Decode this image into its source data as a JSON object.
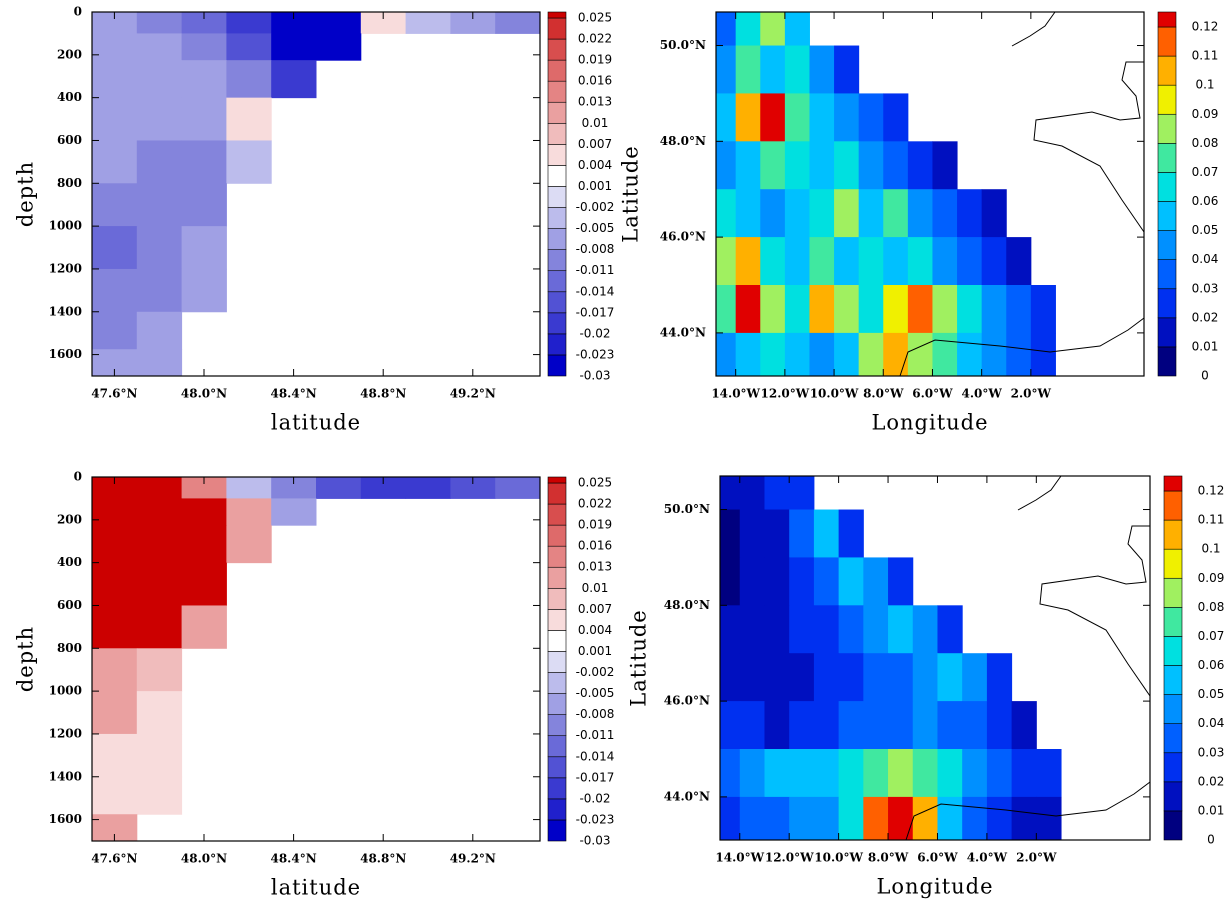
{
  "chart_data": [
    {
      "type": "heatmap",
      "xlabel": "latitude",
      "ylabel": "depth",
      "y_reversed": true,
      "xlim": [
        47.5,
        49.5
      ],
      "ylim": [
        0,
        1700
      ],
      "xticks": [
        {
          "value": 47.6,
          "label": "47.6°N"
        },
        {
          "value": 48.0,
          "label": "48.0°N"
        },
        {
          "value": 48.4,
          "label": "48.4°N"
        },
        {
          "value": 48.8,
          "label": "48.8°N"
        },
        {
          "value": 49.2,
          "label": "49.2°N"
        }
      ],
      "yticks": [
        0,
        200,
        400,
        600,
        800,
        1000,
        1200,
        1400,
        1600
      ],
      "x": [
        47.6,
        47.8,
        48.0,
        48.2,
        48.4,
        48.6,
        48.8,
        49.0,
        49.2,
        49.4
      ],
      "y": [
        50,
        150,
        300,
        500,
        700,
        900,
        1100,
        1300,
        1500,
        1650
      ],
      "z": [
        [
          -0.008,
          -0.01,
          -0.012,
          -0.018,
          -0.025,
          -0.028,
          0.005,
          -0.004,
          -0.008,
          -0.01
        ],
        [
          -0.006,
          -0.007,
          -0.01,
          -0.015,
          -0.025,
          -0.03,
          null,
          null,
          null,
          null
        ],
        [
          -0.006,
          -0.007,
          -0.008,
          -0.01,
          -0.02,
          null,
          null,
          null,
          null,
          null
        ],
        [
          -0.006,
          -0.008,
          -0.008,
          0.005,
          null,
          null,
          null,
          null,
          null,
          null
        ],
        [
          -0.008,
          -0.01,
          -0.011,
          -0.003,
          null,
          null,
          null,
          null,
          null,
          null
        ],
        [
          -0.009,
          -0.011,
          -0.01,
          null,
          null,
          null,
          null,
          null,
          null,
          null
        ],
        [
          -0.012,
          -0.01,
          -0.008,
          null,
          null,
          null,
          null,
          null,
          null,
          null
        ],
        [
          -0.011,
          -0.009,
          -0.006,
          null,
          null,
          null,
          null,
          null,
          null,
          null
        ],
        [
          -0.009,
          -0.008,
          null,
          null,
          null,
          null,
          null,
          null,
          null,
          null
        ],
        [
          -0.008,
          -0.006,
          null,
          null,
          null,
          null,
          null,
          null,
          null,
          null
        ]
      ],
      "colorbar": {
        "levels": [
          -0.03,
          -0.023,
          -0.02,
          -0.017,
          -0.014,
          -0.011,
          -0.008,
          -0.005,
          -0.002,
          0.001,
          0.004,
          0.007,
          0.01,
          0.013,
          0.016,
          0.019,
          0.022,
          0.025
        ],
        "colors": [
          "#0000c8",
          "#2020cc",
          "#3a3ad0",
          "#5252d4",
          "#6a6ad8",
          "#8484dc",
          "#a0a0e4",
          "#bcbcec",
          "#dcdcf4",
          "#ffffff",
          "#f8dcdc",
          "#f0bcbc",
          "#eaa0a0",
          "#e48484",
          "#de6a6a",
          "#d84e4e",
          "#d23030",
          "#cc0000"
        ]
      }
    },
    {
      "type": "heatmap",
      "xlabel": "Longitude",
      "ylabel": "Latitude",
      "xlim": [
        -14.8,
        2.6
      ],
      "ylim": [
        43.1,
        50.7
      ],
      "xticks": [
        {
          "value": -14,
          "label": "14.0°W"
        },
        {
          "value": -12,
          "label": "12.0°W"
        },
        {
          "value": -10,
          "label": "10.0°W"
        },
        {
          "value": -8,
          "label": "8.0°W"
        },
        {
          "value": -6,
          "label": "6.0°W"
        },
        {
          "value": -4,
          "label": "4.0°W"
        },
        {
          "value": -2,
          "label": "2.0°W"
        }
      ],
      "yticks": [
        {
          "value": 44,
          "label": "44.0°N"
        },
        {
          "value": 46,
          "label": "46.0°N"
        },
        {
          "value": 48,
          "label": "48.0°N"
        },
        {
          "value": 50,
          "label": "50.0°N"
        }
      ],
      "x": [
        -14.5,
        -13.5,
        -12.5,
        -11.5,
        -10.5,
        -9.5,
        -8.5,
        -7.5,
        -6.5,
        -5.5,
        -4.5,
        -3.5,
        -2.5,
        -1.5,
        -0.5,
        0.5,
        1.5,
        2.5
      ],
      "y": [
        50.5,
        49.5,
        48.5,
        47.5,
        46.5,
        45.5,
        44.5,
        43.5
      ],
      "z": [
        [
          0.03,
          0.06,
          0.08,
          0.05,
          null,
          null,
          null,
          null,
          null,
          null,
          null,
          null,
          null,
          null,
          null,
          null,
          null,
          null
        ],
        [
          0.04,
          0.07,
          0.05,
          0.06,
          0.04,
          0.02,
          null,
          null,
          null,
          null,
          null,
          null,
          null,
          null,
          null,
          null,
          null,
          null
        ],
        [
          0.05,
          0.1,
          0.12,
          0.07,
          0.05,
          0.04,
          0.03,
          0.02,
          null,
          null,
          null,
          null,
          null,
          null,
          null,
          null,
          null,
          null
        ],
        [
          0.04,
          0.05,
          0.07,
          0.06,
          0.05,
          0.06,
          0.04,
          0.03,
          0.02,
          0.01,
          null,
          null,
          null,
          null,
          null,
          null,
          null,
          null
        ],
        [
          0.06,
          0.05,
          0.04,
          0.05,
          0.06,
          0.08,
          0.05,
          0.07,
          0.04,
          0.03,
          0.02,
          0.01,
          null,
          null,
          null,
          null,
          null,
          null
        ],
        [
          0.08,
          0.1,
          0.06,
          0.05,
          0.07,
          0.05,
          0.06,
          0.05,
          0.06,
          0.04,
          0.03,
          0.02,
          0.01,
          null,
          null,
          null,
          null,
          null
        ],
        [
          0.07,
          0.12,
          0.08,
          0.06,
          0.1,
          0.08,
          0.06,
          0.09,
          0.11,
          0.08,
          0.06,
          0.04,
          0.03,
          0.02,
          null,
          null,
          null,
          null
        ],
        [
          0.04,
          0.05,
          0.06,
          0.05,
          0.04,
          0.05,
          0.08,
          0.1,
          0.08,
          0.07,
          0.05,
          0.04,
          0.03,
          0.02,
          null,
          null,
          null,
          null
        ]
      ],
      "colorbar": {
        "levels": [
          0,
          0.01,
          0.02,
          0.03,
          0.04,
          0.05,
          0.06,
          0.07,
          0.08,
          0.09,
          0.1,
          0.11,
          0.12
        ],
        "colors": [
          "#000080",
          "#0010c0",
          "#0030f0",
          "#0060ff",
          "#0090ff",
          "#00c0ff",
          "#00e0e0",
          "#40e8a0",
          "#a0f060",
          "#f0f000",
          "#ffb000",
          "#ff6000",
          "#e00000",
          "#b00000"
        ]
      }
    },
    {
      "type": "heatmap",
      "xlabel": "latitude",
      "ylabel": "depth",
      "y_reversed": true,
      "xlim": [
        47.5,
        49.5
      ],
      "ylim": [
        0,
        1700
      ],
      "xticks": [
        {
          "value": 47.6,
          "label": "47.6°N"
        },
        {
          "value": 48.0,
          "label": "48.0°N"
        },
        {
          "value": 48.4,
          "label": "48.4°N"
        },
        {
          "value": 48.8,
          "label": "48.8°N"
        },
        {
          "value": 49.2,
          "label": "49.2°N"
        }
      ],
      "yticks": [
        0,
        200,
        400,
        600,
        800,
        1000,
        1200,
        1400,
        1600
      ],
      "x": [
        47.6,
        47.8,
        48.0,
        48.2,
        48.4,
        48.6,
        48.8,
        49.0,
        49.2,
        49.4
      ],
      "y": [
        50,
        150,
        300,
        500,
        700,
        900,
        1100,
        1300,
        1500,
        1650
      ],
      "z": [
        [
          0.028,
          0.028,
          0.015,
          -0.005,
          -0.01,
          -0.015,
          -0.02,
          -0.018,
          -0.015,
          -0.012
        ],
        [
          0.028,
          0.028,
          0.028,
          0.01,
          -0.008,
          null,
          null,
          null,
          null,
          null
        ],
        [
          0.028,
          0.028,
          0.028,
          0.01,
          null,
          null,
          null,
          null,
          null,
          null
        ],
        [
          0.028,
          0.028,
          0.028,
          null,
          null,
          null,
          null,
          null,
          null,
          null
        ],
        [
          0.028,
          0.028,
          0.012,
          null,
          null,
          null,
          null,
          null,
          null,
          null
        ],
        [
          0.012,
          0.008,
          null,
          null,
          null,
          null,
          null,
          null,
          null,
          null
        ],
        [
          0.01,
          0.006,
          null,
          null,
          null,
          null,
          null,
          null,
          null,
          null
        ],
        [
          0.005,
          0.004,
          null,
          null,
          null,
          null,
          null,
          null,
          null,
          null
        ],
        [
          0.006,
          0.004,
          null,
          null,
          null,
          null,
          null,
          null,
          null,
          null
        ],
        [
          0.01,
          null,
          null,
          null,
          null,
          null,
          null,
          null,
          null,
          null
        ]
      ],
      "colorbar": {
        "levels": [
          -0.03,
          -0.023,
          -0.02,
          -0.017,
          -0.014,
          -0.011,
          -0.008,
          -0.005,
          -0.002,
          0.001,
          0.004,
          0.007,
          0.01,
          0.013,
          0.016,
          0.019,
          0.022,
          0.025
        ],
        "colors": [
          "#0000c8",
          "#2020cc",
          "#3a3ad0",
          "#5252d4",
          "#6a6ad8",
          "#8484dc",
          "#a0a0e4",
          "#bcbcec",
          "#dcdcf4",
          "#ffffff",
          "#f8dcdc",
          "#f0bcbc",
          "#eaa0a0",
          "#e48484",
          "#de6a6a",
          "#d84e4e",
          "#d23030",
          "#cc0000"
        ]
      }
    },
    {
      "type": "heatmap",
      "xlabel": "Longitude",
      "ylabel": "Latitude",
      "xlim": [
        -14.8,
        2.6
      ],
      "ylim": [
        43.1,
        50.7
      ],
      "xticks": [
        {
          "value": -14,
          "label": "14.0°W"
        },
        {
          "value": -12,
          "label": "12.0°W"
        },
        {
          "value": -10,
          "label": "10.0°W"
        },
        {
          "value": -8,
          "label": "8.0°W"
        },
        {
          "value": -6,
          "label": "6.0°W"
        },
        {
          "value": -4,
          "label": "4.0°W"
        },
        {
          "value": -2,
          "label": "2.0°W"
        }
      ],
      "yticks": [
        {
          "value": 44,
          "label": "44.0°N"
        },
        {
          "value": 46,
          "label": "46.0°N"
        },
        {
          "value": 48,
          "label": "48.0°N"
        },
        {
          "value": 50,
          "label": "50.0°N"
        }
      ],
      "x": [
        -14.5,
        -13.5,
        -12.5,
        -11.5,
        -10.5,
        -9.5,
        -8.5,
        -7.5,
        -6.5,
        -5.5,
        -4.5,
        -3.5,
        -2.5,
        -1.5,
        -0.5,
        0.5,
        1.5,
        2.5
      ],
      "y": [
        50.5,
        49.5,
        48.5,
        47.5,
        46.5,
        45.5,
        44.5,
        43.5
      ],
      "z": [
        [
          0.01,
          0.015,
          0.02,
          0.02,
          null,
          null,
          null,
          null,
          null,
          null,
          null,
          null,
          null,
          null,
          null,
          null,
          null,
          null
        ],
        [
          0.005,
          0.01,
          0.015,
          0.03,
          0.05,
          0.02,
          null,
          null,
          null,
          null,
          null,
          null,
          null,
          null,
          null,
          null,
          null,
          null
        ],
        [
          0.005,
          0.01,
          0.015,
          0.02,
          0.03,
          0.05,
          0.04,
          0.02,
          null,
          null,
          null,
          null,
          null,
          null,
          null,
          null,
          null,
          null
        ],
        [
          0.01,
          0.01,
          0.015,
          0.02,
          0.025,
          0.03,
          0.04,
          0.05,
          0.04,
          0.02,
          null,
          null,
          null,
          null,
          null,
          null,
          null,
          null
        ],
        [
          0.015,
          0.01,
          0.01,
          0.015,
          0.02,
          0.025,
          0.03,
          0.035,
          0.04,
          0.05,
          0.04,
          0.02,
          null,
          null,
          null,
          null,
          null,
          null
        ],
        [
          0.02,
          0.02,
          0.015,
          0.02,
          0.025,
          0.03,
          0.03,
          0.035,
          0.04,
          0.035,
          0.03,
          0.02,
          0.015,
          null,
          null,
          null,
          null,
          null
        ],
        [
          0.03,
          0.04,
          0.05,
          0.05,
          0.05,
          0.06,
          0.07,
          0.08,
          0.07,
          0.06,
          0.04,
          0.03,
          0.02,
          0.02,
          null,
          null,
          null,
          null
        ],
        [
          0.02,
          0.03,
          0.03,
          0.04,
          0.04,
          0.06,
          0.11,
          0.12,
          0.1,
          0.05,
          0.03,
          0.02,
          0.015,
          0.01,
          null,
          null,
          null,
          null
        ]
      ],
      "colorbar": {
        "levels": [
          0,
          0.01,
          0.02,
          0.03,
          0.04,
          0.05,
          0.06,
          0.07,
          0.08,
          0.09,
          0.1,
          0.11,
          0.12
        ],
        "colors": [
          "#000080",
          "#0010c0",
          "#0030f0",
          "#0060ff",
          "#0090ff",
          "#00c0ff",
          "#00e0e0",
          "#40e8a0",
          "#a0f060",
          "#f0f000",
          "#ffb000",
          "#ff6000",
          "#e00000",
          "#b00000"
        ]
      }
    }
  ]
}
